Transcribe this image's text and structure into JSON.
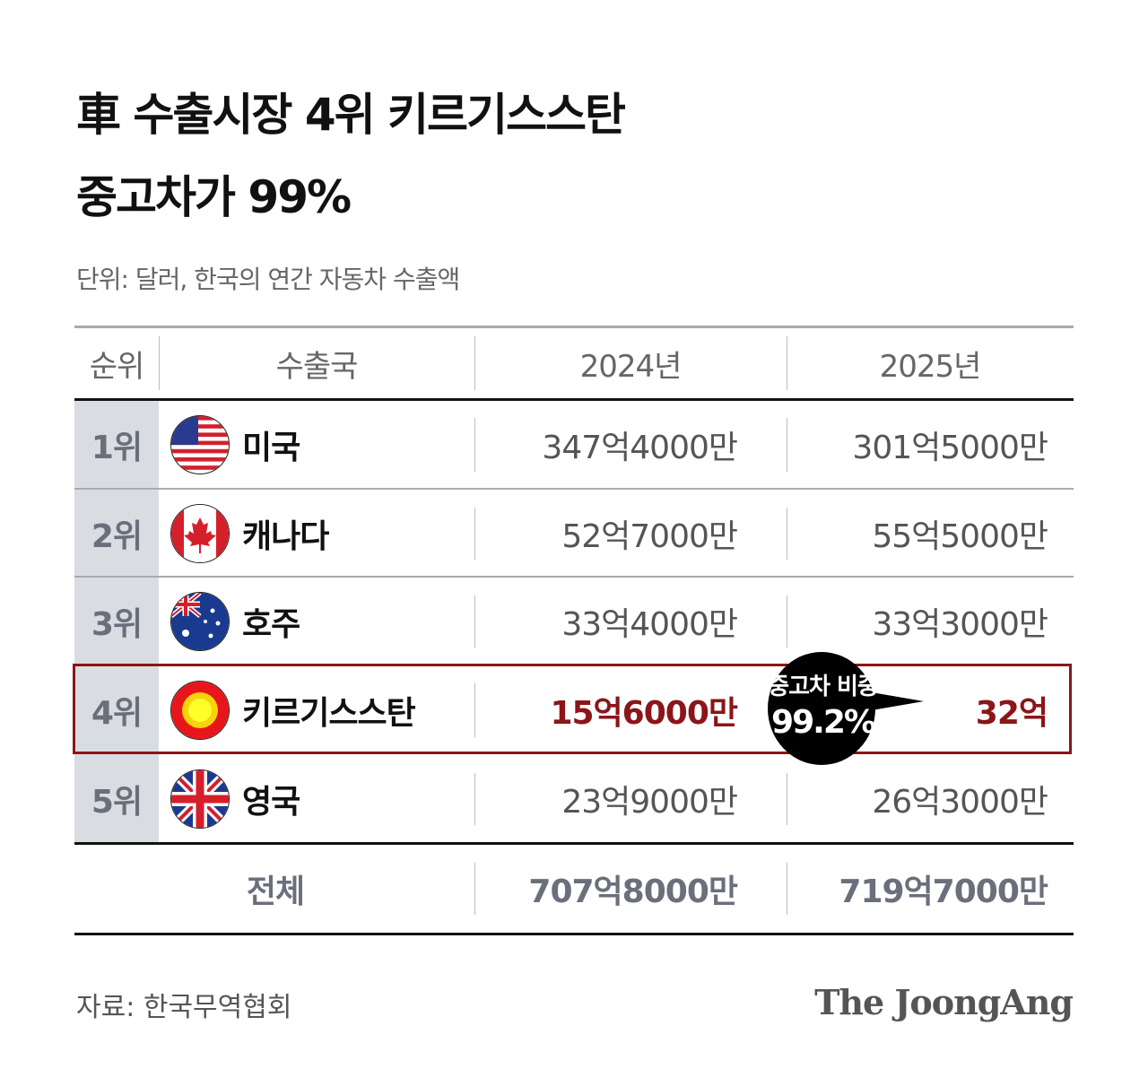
{
  "title_line1": "車 수출시장 4위 키르기스스탄",
  "title_line2": "중고차가 99%",
  "unit": "단위: 달러, 한국의 연간 자동차 수출액",
  "colors": {
    "highlight": "#8b1518",
    "rank_bg": "#d9dde2"
  },
  "chart_data": {
    "type": "table",
    "columns": [
      "순위",
      "수출국",
      "2024년",
      "2025년"
    ],
    "rows": [
      {
        "rank": "1위",
        "country": "미국",
        "flag": "us-flag-icon",
        "y2024": "347억4000만",
        "y2025": "301억5000만"
      },
      {
        "rank": "2위",
        "country": "캐나다",
        "flag": "canada-flag-icon",
        "y2024": "52억7000만",
        "y2025": "55억5000만"
      },
      {
        "rank": "3위",
        "country": "호주",
        "flag": "australia-flag-icon",
        "y2024": "33억4000만",
        "y2025": "33억3000만"
      },
      {
        "rank": "4위",
        "country": "키르기스스탄",
        "flag": "kyrgyzstan-flag-icon",
        "y2024": "15억6000만",
        "y2025": "32억",
        "highlighted": true
      },
      {
        "rank": "5위",
        "country": "영국",
        "flag": "uk-flag-icon",
        "y2024": "23억9000만",
        "y2025": "26억3000만"
      }
    ],
    "total": {
      "label": "전체",
      "y2024": "707억8000만",
      "y2025": "719억7000만"
    },
    "annotation": {
      "label": "중고차 비중",
      "value": "99.2%"
    }
  },
  "source": "자료: 한국무역협회",
  "logo": "The JoongAng"
}
